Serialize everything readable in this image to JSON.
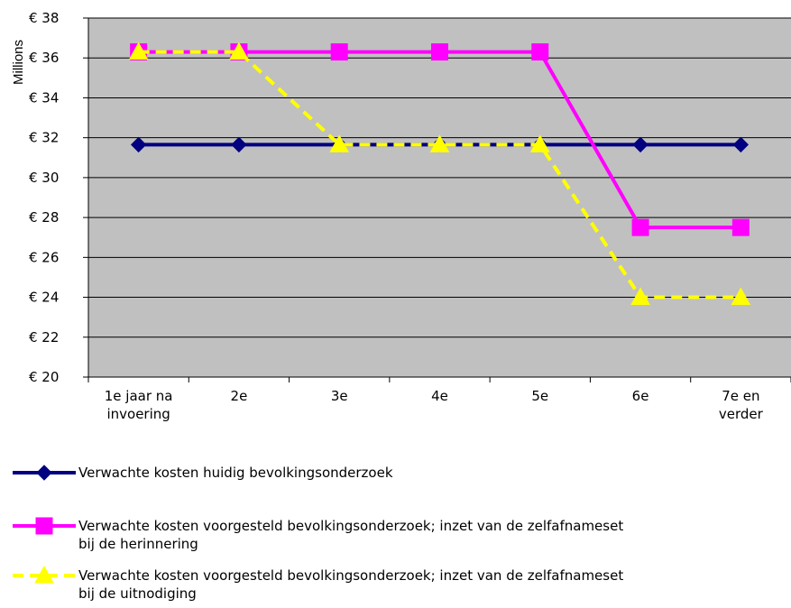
{
  "chart_data": {
    "type": "line",
    "title": "",
    "xlabel": "",
    "ylabel": "Millions",
    "ylim": [
      20,
      38
    ],
    "y_tick_step": 2,
    "y_tick_prefix": "€ ",
    "grid": "horizontal",
    "legend_position": "bottom",
    "plot_background": "#c0c0c0",
    "categories": [
      [
        "1e jaar na",
        "invoering"
      ],
      [
        "2e"
      ],
      [
        "3e"
      ],
      [
        "4e"
      ],
      [
        "5e"
      ],
      [
        "6e"
      ],
      [
        "7e en",
        "verder"
      ]
    ],
    "series": [
      {
        "name": [
          "Verwachte kosten huidig bevolkingsonderzoek"
        ],
        "values": [
          31.65,
          31.65,
          31.65,
          31.65,
          31.65,
          31.65,
          31.65
        ],
        "color": "#000080",
        "marker": "diamond",
        "dash": "solid"
      },
      {
        "name": [
          "Verwachte kosten voorgesteld bevolkingsonderzoek; inzet van de zelfafnameset",
          "bij de herinnering"
        ],
        "values": [
          36.3,
          36.3,
          36.3,
          36.3,
          36.3,
          27.5,
          27.5
        ],
        "color": "#ff00ff",
        "marker": "square",
        "dash": "solid"
      },
      {
        "name": [
          "Verwachte kosten voorgesteld bevolkingsonderzoek; inzet van de zelfafnameset",
          "bij de uitnodiging"
        ],
        "values": [
          36.3,
          36.3,
          31.65,
          31.65,
          31.65,
          24.0,
          24.0
        ],
        "color": "#ffff00",
        "marker": "triangle",
        "dash": "dashed"
      }
    ]
  }
}
